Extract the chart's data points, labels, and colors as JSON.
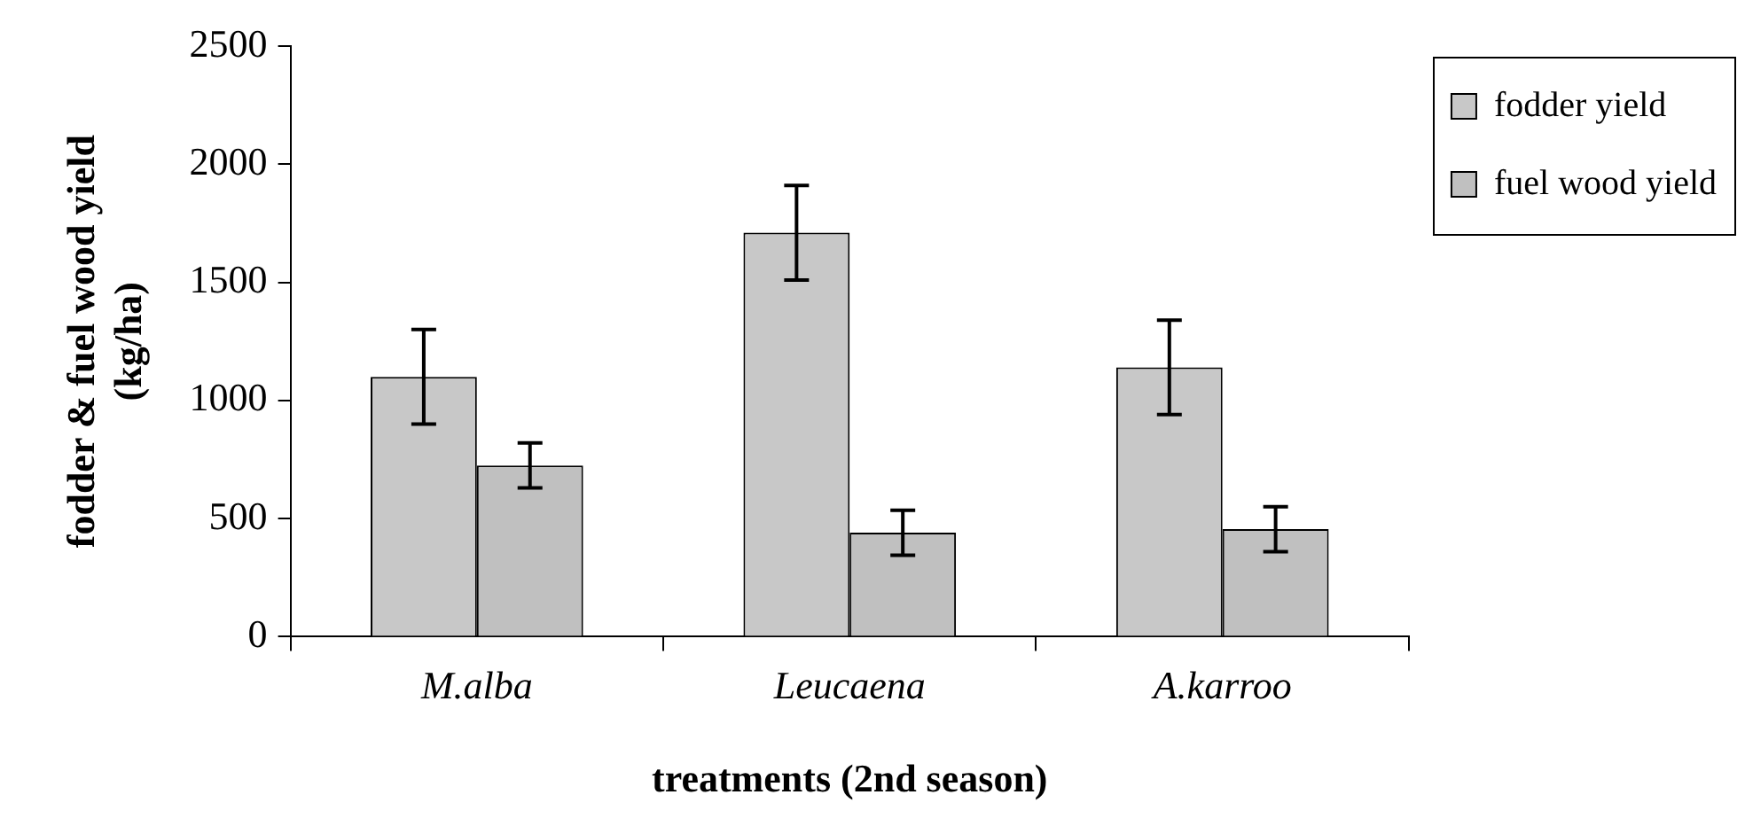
{
  "chart_data": {
    "type": "bar",
    "xlabel": "treatments (2nd season)",
    "ylabel": "fodder & fuel wood yield (kg/ha)",
    "categories": [
      "M.alba",
      "Leucaena",
      "A.karroo"
    ],
    "series": [
      {
        "name": "fodder yield",
        "color": "#c8c8c8",
        "values": [
          1100,
          1710,
          1140
        ],
        "errors": [
          200,
          200,
          200
        ]
      },
      {
        "name": "fuel wood yield",
        "color": "#c0c0c0",
        "values": [
          725,
          440,
          455
        ],
        "errors": [
          95,
          95,
          95
        ]
      }
    ],
    "ylim": [
      0,
      2500
    ],
    "yticks": [
      0,
      500,
      1000,
      1500,
      2000,
      2500
    ],
    "grid": false,
    "legend": "right"
  }
}
